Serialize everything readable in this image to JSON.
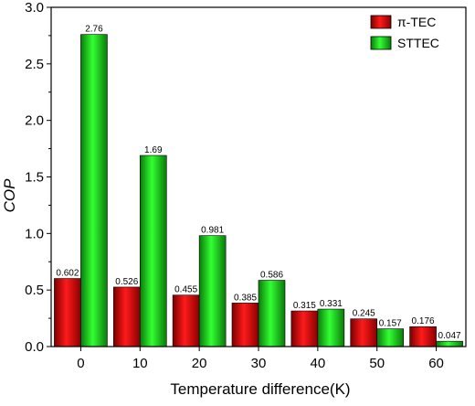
{
  "chart_data": {
    "type": "bar",
    "title": "",
    "xlabel": "Temperature difference(K)",
    "ylabel": "COP",
    "categories": [
      "0",
      "10",
      "20",
      "30",
      "40",
      "50",
      "60"
    ],
    "ylim": [
      0,
      3.0
    ],
    "yticks": [
      "0.0",
      "0.5",
      "1.0",
      "1.5",
      "2.0",
      "2.5",
      "3.0"
    ],
    "grid": false,
    "legend_position": "top-right",
    "series": [
      {
        "name": "π-TEC",
        "color": "#e01010",
        "values": [
          0.602,
          0.526,
          0.455,
          0.385,
          0.315,
          0.245,
          0.176
        ],
        "labels": [
          "0.602",
          "0.526",
          "0.455",
          "0.385",
          "0.315",
          "0.245",
          "0.176"
        ]
      },
      {
        "name": "STTEC",
        "color": "#22dd22",
        "values": [
          2.76,
          1.69,
          0.981,
          0.586,
          0.331,
          0.157,
          0.047
        ],
        "labels": [
          "2.76",
          "1.69",
          "0.981",
          "0.586",
          "0.331",
          "0.157",
          "0.047"
        ]
      }
    ]
  }
}
